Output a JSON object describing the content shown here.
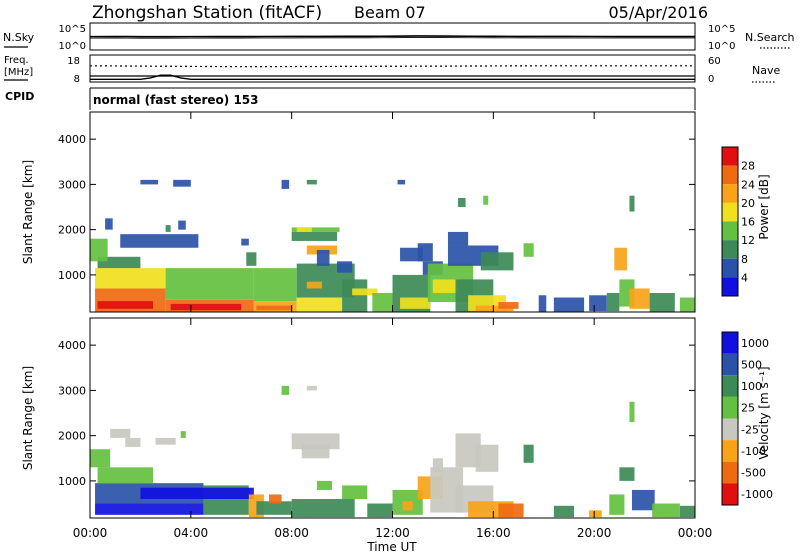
{
  "header": {
    "station": "Zhongshan Station (fitACF)",
    "beam": "Beam 07",
    "date": "05/Apr/2016"
  },
  "summary": {
    "nsky_label": "N.Sky",
    "nsky_ticks": [
      "10^5",
      "10^0"
    ],
    "nsearch_label": "N.Search",
    "nsearch_ticks": [
      "10^5",
      "10^0"
    ],
    "freq_label_1": "Freq.",
    "freq_label_2": "[MHz]",
    "freq_ticks": [
      "18",
      "8"
    ],
    "nave_label": "Nave",
    "nave_ticks": [
      "60",
      "0"
    ],
    "cpid_label": "CPID",
    "cpid_value": "normal (fast stereo) 153"
  },
  "colors": {
    "power": [
      "#1010e0",
      "#2a52a8",
      "#3d8a57",
      "#64c040",
      "#f0e01e",
      "#f7a418",
      "#f06a10",
      "#e01010"
    ],
    "velocity": [
      "#e01010",
      "#f06a10",
      "#f7a418",
      "#c8c8c0",
      "#64c040",
      "#3d8a57",
      "#2a52a8",
      "#1010e0"
    ]
  },
  "chart_data": [
    {
      "type": "heatmap",
      "name": "power",
      "xlabel": "",
      "ylabel": "Slant Range [km]",
      "xlim": [
        0,
        24
      ],
      "ylim": [
        180,
        4600
      ],
      "yticks": [
        "1000",
        "2000",
        "3000",
        "4000"
      ],
      "colorbar_label": "Power [dB]",
      "colorbar_ticks": [
        "4",
        "8",
        "12",
        "16",
        "20",
        "24",
        "28"
      ],
      "cells": [
        [
          0.2,
          3.0,
          180,
          700,
          6
        ],
        [
          0.2,
          3.0,
          700,
          1150,
          4
        ],
        [
          0.3,
          2.5,
          250,
          420,
          7
        ],
        [
          3.0,
          6.5,
          180,
          450,
          6
        ],
        [
          3.0,
          6.5,
          450,
          1150,
          3
        ],
        [
          3.2,
          6.0,
          220,
          360,
          7
        ],
        [
          0.3,
          2.0,
          1150,
          1400,
          2
        ],
        [
          0.0,
          0.7,
          1300,
          1800,
          3
        ],
        [
          0.6,
          0.9,
          2000,
          2250,
          1
        ],
        [
          1.2,
          4.3,
          1600,
          1900,
          1
        ],
        [
          3.0,
          3.2,
          1950,
          2100,
          2
        ],
        [
          6.5,
          8.2,
          180,
          420,
          5
        ],
        [
          6.5,
          8.2,
          420,
          1150,
          3
        ],
        [
          6.6,
          8.0,
          220,
          320,
          6
        ],
        [
          8.2,
          10.0,
          180,
          500,
          4
        ],
        [
          8.2,
          10.5,
          500,
          1250,
          2
        ],
        [
          8.6,
          9.2,
          700,
          850,
          5
        ],
        [
          6.2,
          6.6,
          1200,
          1500,
          2
        ],
        [
          6.0,
          6.3,
          1650,
          1800,
          1
        ],
        [
          8.0,
          9.9,
          1950,
          2050,
          3
        ],
        [
          8.0,
          9.8,
          1750,
          1950,
          2
        ],
        [
          8.6,
          9.8,
          1450,
          1650,
          5
        ],
        [
          8.2,
          8.8,
          1950,
          2050,
          4
        ],
        [
          9.0,
          9.5,
          1200,
          1550,
          1
        ],
        [
          9.8,
          10.4,
          1050,
          1300,
          1
        ],
        [
          10.0,
          11.0,
          180,
          900,
          2
        ],
        [
          10.4,
          11.4,
          550,
          700,
          4
        ],
        [
          11.2,
          12.0,
          180,
          600,
          3
        ],
        [
          12.0,
          13.5,
          180,
          1000,
          2
        ],
        [
          12.3,
          13.5,
          250,
          500,
          4
        ],
        [
          13.0,
          13.6,
          1300,
          1700,
          1
        ],
        [
          12.3,
          13.2,
          1300,
          1600,
          1
        ],
        [
          13.2,
          14.0,
          1000,
          1300,
          1
        ],
        [
          13.4,
          15.2,
          400,
          1250,
          3
        ],
        [
          13.6,
          14.6,
          600,
          900,
          4
        ],
        [
          14.5,
          16.0,
          180,
          900,
          2
        ],
        [
          15.0,
          16.5,
          200,
          550,
          4
        ],
        [
          15.3,
          16.8,
          200,
          320,
          5
        ],
        [
          16.2,
          17.0,
          250,
          400,
          6
        ],
        [
          14.2,
          16.2,
          1200,
          1650,
          1
        ],
        [
          14.2,
          15.0,
          1650,
          1950,
          1
        ],
        [
          15.5,
          16.8,
          1100,
          1500,
          2
        ],
        [
          17.2,
          17.6,
          1400,
          1700,
          3
        ],
        [
          15.6,
          15.8,
          2550,
          2750,
          3
        ],
        [
          18.4,
          19.6,
          180,
          500,
          1
        ],
        [
          19.8,
          20.5,
          200,
          550,
          1
        ],
        [
          20.5,
          21.0,
          200,
          600,
          2
        ],
        [
          20.8,
          21.3,
          1100,
          1600,
          5
        ],
        [
          21.0,
          21.6,
          300,
          900,
          3
        ],
        [
          21.4,
          22.2,
          250,
          700,
          5
        ],
        [
          22.2,
          23.2,
          180,
          600,
          2
        ],
        [
          23.4,
          24.0,
          180,
          500,
          3
        ],
        [
          17.8,
          18.1,
          180,
          550,
          1
        ],
        [
          14.6,
          14.9,
          2500,
          2700,
          2
        ],
        [
          2.0,
          2.7,
          3000,
          3100,
          1
        ],
        [
          3.3,
          4.0,
          2950,
          3100,
          1
        ],
        [
          7.6,
          7.9,
          2900,
          3100,
          1
        ],
        [
          8.6,
          9.0,
          3000,
          3100,
          2
        ],
        [
          3.5,
          3.8,
          2000,
          2200,
          1
        ],
        [
          12.2,
          12.5,
          3000,
          3100,
          1
        ],
        [
          21.4,
          21.6,
          2400,
          2750,
          2
        ]
      ]
    },
    {
      "type": "heatmap",
      "name": "velocity",
      "xlabel": "Time UT",
      "ylabel": "Slant Range [km]",
      "xlim": [
        0,
        24
      ],
      "ylim": [
        180,
        4600
      ],
      "yticks": [
        "1000",
        "2000",
        "3000",
        "4000"
      ],
      "xticks": [
        "00:00",
        "04:00",
        "08:00",
        "12:00",
        "16:00",
        "20:00",
        "00:00"
      ],
      "colorbar_label": "Velocity [m s⁻¹]",
      "colorbar_ticks": [
        "1000",
        "500",
        "100",
        "25",
        "-25",
        "-100",
        "-500",
        "-1000"
      ],
      "cells": [
        [
          0.2,
          4.5,
          500,
          950,
          6
        ],
        [
          0.2,
          4.5,
          250,
          500,
          7
        ],
        [
          0.3,
          2.5,
          950,
          1300,
          4
        ],
        [
          0.0,
          0.8,
          1300,
          1700,
          4
        ],
        [
          4.5,
          6.3,
          250,
          900,
          5
        ],
        [
          2.0,
          6.5,
          600,
          850,
          7
        ],
        [
          6.3,
          6.9,
          200,
          700,
          2
        ],
        [
          6.6,
          8.0,
          250,
          550,
          5
        ],
        [
          7.1,
          7.6,
          500,
          700,
          1
        ],
        [
          8.0,
          10.5,
          200,
          600,
          5
        ],
        [
          8.0,
          9.9,
          1700,
          2050,
          3
        ],
        [
          8.4,
          9.5,
          1500,
          1800,
          3
        ],
        [
          9.0,
          9.6,
          800,
          1000,
          4
        ],
        [
          10.0,
          11.0,
          600,
          900,
          4
        ],
        [
          11.0,
          12.0,
          200,
          500,
          5
        ],
        [
          12.0,
          13.2,
          250,
          800,
          4
        ],
        [
          12.4,
          12.8,
          350,
          550,
          2
        ],
        [
          13.0,
          14.0,
          600,
          1100,
          2
        ],
        [
          13.5,
          14.8,
          300,
          1300,
          3
        ],
        [
          14.5,
          16.0,
          300,
          900,
          3
        ],
        [
          15.0,
          16.8,
          200,
          550,
          2
        ],
        [
          16.2,
          17.2,
          200,
          500,
          1
        ],
        [
          14.5,
          15.5,
          1300,
          2050,
          3
        ],
        [
          15.3,
          16.2,
          1200,
          1800,
          3
        ],
        [
          13.6,
          14.0,
          1200,
          1500,
          3
        ],
        [
          17.2,
          17.6,
          1400,
          1800,
          5
        ],
        [
          18.4,
          19.2,
          200,
          450,
          5
        ],
        [
          19.8,
          20.3,
          200,
          350,
          2
        ],
        [
          20.6,
          21.2,
          250,
          700,
          4
        ],
        [
          21.0,
          21.6,
          1000,
          1300,
          5
        ],
        [
          21.5,
          22.4,
          350,
          800,
          6
        ],
        [
          22.3,
          23.4,
          200,
          500,
          4
        ],
        [
          23.4,
          24.0,
          200,
          450,
          5
        ],
        [
          0.8,
          1.6,
          1950,
          2150,
          3
        ],
        [
          1.4,
          2.0,
          1750,
          1950,
          3
        ],
        [
          2.6,
          3.4,
          1800,
          1950,
          3
        ],
        [
          7.6,
          7.9,
          2900,
          3100,
          4
        ],
        [
          8.6,
          9.0,
          3000,
          3100,
          3
        ],
        [
          21.4,
          21.6,
          2300,
          2750,
          4
        ],
        [
          3.6,
          3.8,
          1950,
          2100,
          4
        ]
      ]
    }
  ],
  "nsky_trace": [
    [
      0,
      300
    ],
    [
      1,
      310
    ],
    [
      2,
      295
    ],
    [
      3,
      290
    ],
    [
      4,
      300
    ],
    [
      5,
      305
    ],
    [
      6,
      310
    ],
    [
      7,
      315
    ],
    [
      8,
      320
    ],
    [
      9,
      330
    ],
    [
      10,
      340
    ],
    [
      11,
      345
    ],
    [
      12,
      360
    ],
    [
      13,
      400
    ],
    [
      14,
      380
    ],
    [
      15,
      350
    ],
    [
      16,
      340
    ],
    [
      17,
      330
    ],
    [
      18,
      320
    ],
    [
      19,
      318
    ],
    [
      20,
      315
    ],
    [
      21,
      314
    ],
    [
      22,
      313
    ],
    [
      23,
      312
    ],
    [
      24,
      312
    ]
  ],
  "freq_trace": [
    [
      0,
      9.0
    ],
    [
      2,
      9.0
    ],
    [
      2.4,
      9.5
    ],
    [
      2.8,
      10.5
    ],
    [
      3.2,
      10.5
    ],
    [
      3.6,
      9.5
    ],
    [
      4,
      9.0
    ],
    [
      24,
      9.0
    ]
  ],
  "nave_trace": [
    [
      0,
      36
    ],
    [
      6,
      34
    ],
    [
      12,
      35
    ],
    [
      18,
      36
    ],
    [
      24,
      36
    ]
  ]
}
